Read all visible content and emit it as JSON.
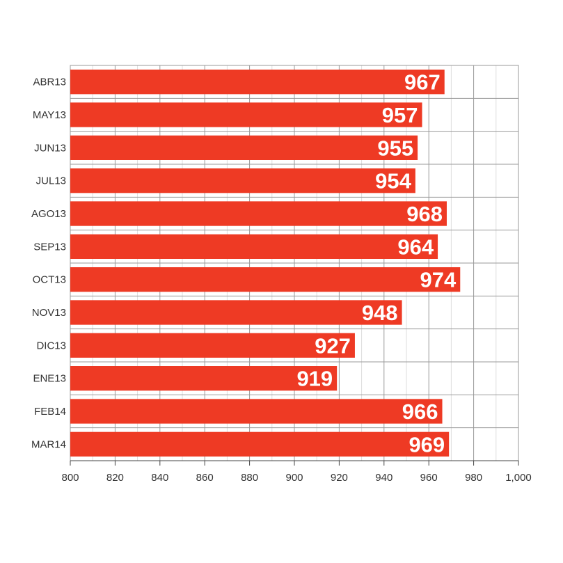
{
  "chart_data": {
    "type": "bar",
    "orientation": "horizontal",
    "categories": [
      "ABR13",
      "MAY13",
      "JUN13",
      "JUL13",
      "AGO13",
      "SEP13",
      "OCT13",
      "NOV13",
      "DIC13",
      "ENE13",
      "FEB14",
      "MAR14"
    ],
    "values": [
      967,
      957,
      955,
      954,
      968,
      964,
      974,
      948,
      927,
      919,
      966,
      969
    ],
    "value_labels": [
      "967",
      "957",
      "955",
      "954",
      "968",
      "964",
      "974",
      "948",
      "927",
      "919",
      "966",
      "969"
    ],
    "xlim": [
      800,
      1000
    ],
    "xticks": [
      800,
      820,
      840,
      860,
      880,
      900,
      920,
      940,
      960,
      980,
      1000
    ],
    "xtick_labels": [
      "800",
      "820",
      "840",
      "860",
      "880",
      "900",
      "920",
      "940",
      "960",
      "980",
      "1,000"
    ],
    "title": "",
    "xlabel": "",
    "ylabel": "",
    "grid": true,
    "bar_color": "#ee3a24",
    "label_color": "#ffffff",
    "grid_color": "#999999"
  }
}
